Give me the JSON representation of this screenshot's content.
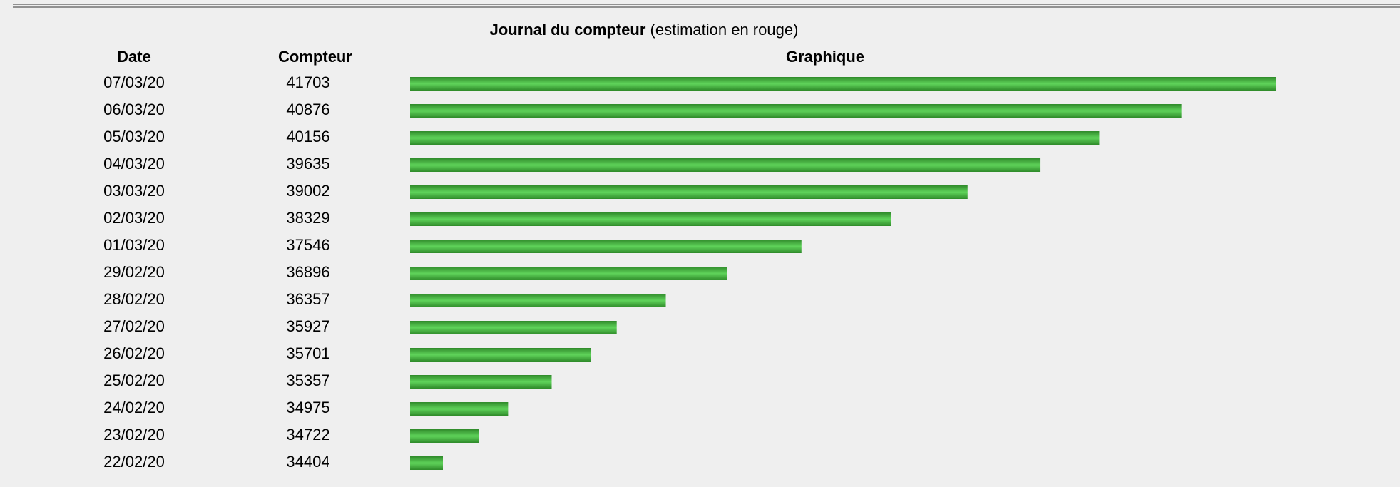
{
  "header": {
    "title": "Journal du compteur",
    "subtitle": "(estimation en rouge)"
  },
  "table": {
    "columns": [
      "Date",
      "Compteur",
      "Graphique"
    ],
    "rows": [
      [
        "07/03/20",
        41703
      ],
      [
        "06/03/20",
        40876
      ],
      [
        "05/03/20",
        40156
      ],
      [
        "04/03/20",
        39635
      ],
      [
        "03/03/20",
        39002
      ],
      [
        "02/03/20",
        38329
      ],
      [
        "01/03/20",
        37546
      ],
      [
        "29/02/20",
        36896
      ],
      [
        "28/02/20",
        36357
      ],
      [
        "27/02/20",
        35927
      ],
      [
        "26/02/20",
        35701
      ],
      [
        "25/02/20",
        35357
      ],
      [
        "24/02/20",
        34975
      ],
      [
        "23/02/20",
        34722
      ],
      [
        "22/02/20",
        34404
      ]
    ]
  }
}
